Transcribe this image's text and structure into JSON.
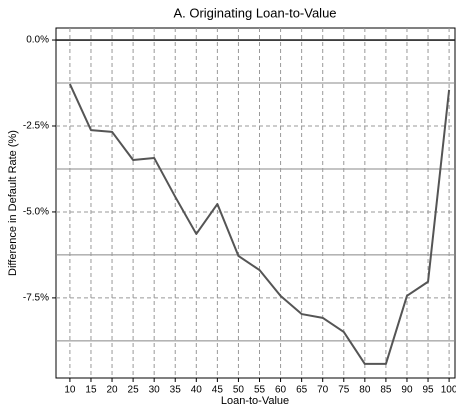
{
  "chart_data": {
    "type": "line",
    "title": "A. Originating Loan-to-Value",
    "x_label": "Loan-to-Value",
    "y_label": "Difference in Default Rate (%)",
    "x": [
      10,
      15,
      20,
      25,
      30,
      35,
      40,
      45,
      50,
      55,
      60,
      65,
      70,
      75,
      80,
      85,
      90,
      95,
      100
    ],
    "values": [
      -1.28,
      -2.62,
      -2.67,
      -3.49,
      -3.43,
      -4.56,
      -5.64,
      -4.77,
      -6.28,
      -6.69,
      -7.44,
      -7.97,
      -8.08,
      -8.49,
      -9.42,
      -9.42,
      -7.44,
      -7.03,
      -1.45
    ],
    "color": "#555555",
    "xlim": [
      6.7,
      101.4
    ],
    "xticks": [
      10,
      15,
      20,
      25,
      30,
      35,
      40,
      45,
      50,
      55,
      60,
      65,
      70,
      75,
      80,
      85,
      90,
      95,
      100
    ],
    "ylim": [
      -9.83,
      0.35
    ],
    "yticks": [
      {
        "value": 0,
        "label": "0.0%"
      },
      {
        "value": -2.5,
        "label": "-2.5%"
      },
      {
        "value": -5,
        "label": "-5.0%"
      },
      {
        "value": -7.5,
        "label": "-7.5%"
      }
    ],
    "y_minor_gridlines": [
      -1.25,
      -3.75,
      -6.25,
      -8.75
    ],
    "grid": true
  }
}
